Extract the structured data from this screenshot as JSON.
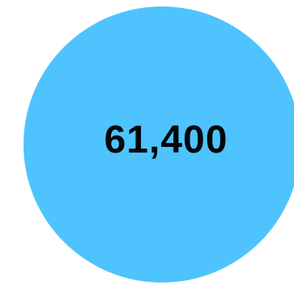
{
  "stat": {
    "value": "61,400",
    "circle_color": "#4ec3fd",
    "text_color": "#050709"
  }
}
